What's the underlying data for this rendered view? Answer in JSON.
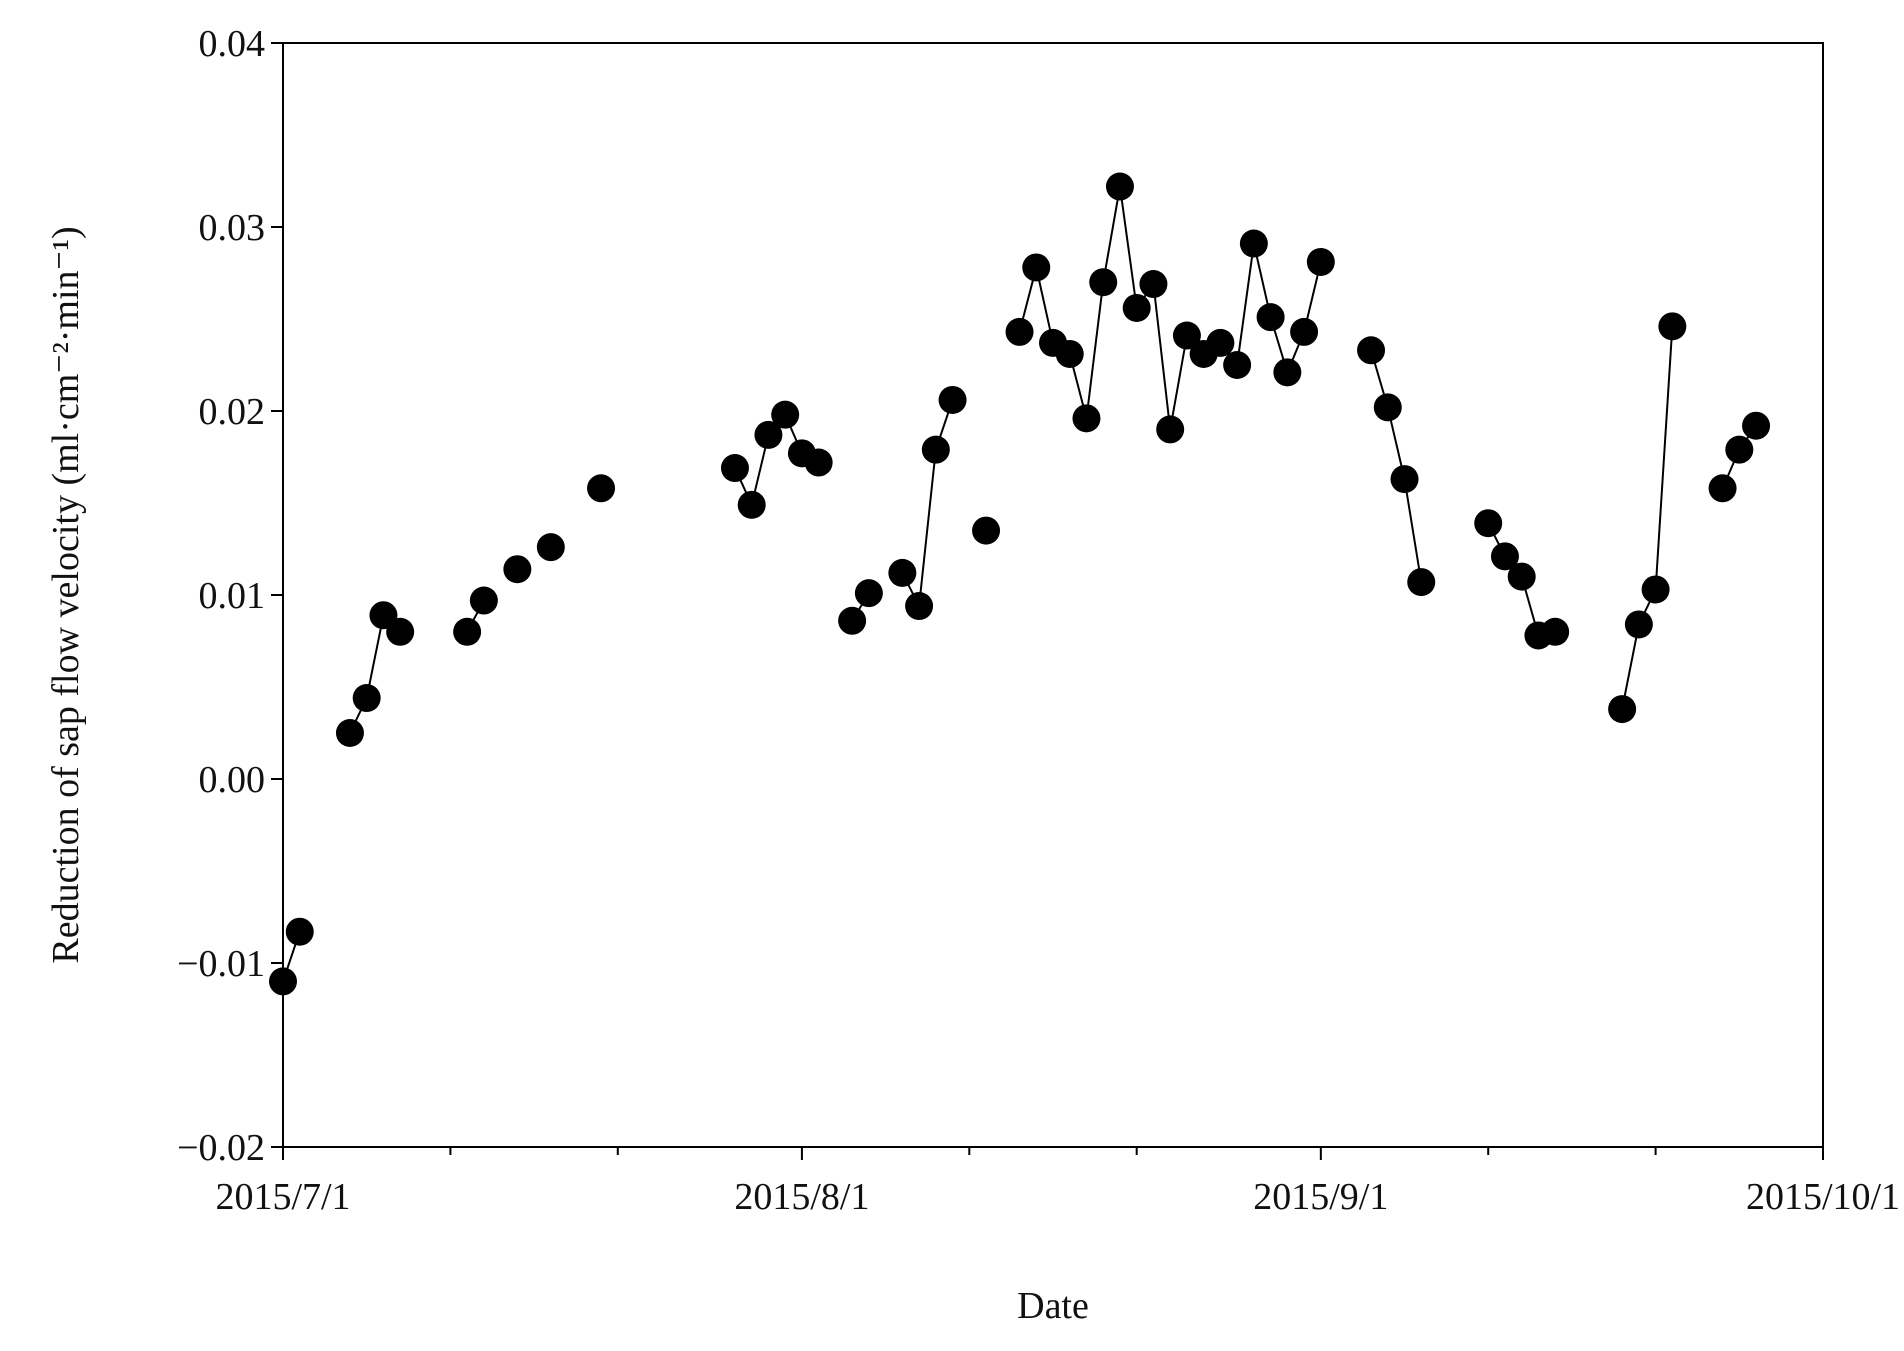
{
  "chart_data": {
    "type": "line",
    "y_label": "Reduction of  sap flow velocity (ml·cm⁻²·min⁻¹)",
    "x_label": "Date",
    "color": "#000000",
    "markers": true,
    "x": [
      "2015-07-01",
      "2015-07-02",
      null,
      "2015-07-05",
      "2015-07-06",
      "2015-07-07",
      "2015-07-08",
      null,
      "2015-07-12",
      "2015-07-13",
      null,
      "2015-07-15",
      null,
      "2015-07-17",
      null,
      "2015-07-20",
      null,
      "2015-07-28",
      "2015-07-29",
      "2015-07-30",
      "2015-07-31",
      "2015-08-01",
      "2015-08-02",
      null,
      "2015-08-04",
      "2015-08-05",
      null,
      "2015-08-07",
      "2015-08-08",
      "2015-08-09",
      "2015-08-10",
      null,
      "2015-08-12",
      null,
      "2015-08-14",
      "2015-08-15",
      "2015-08-16",
      "2015-08-17",
      "2015-08-18",
      "2015-08-19",
      "2015-08-20",
      "2015-08-21",
      "2015-08-22",
      "2015-08-23",
      "2015-08-24",
      "2015-08-25",
      "2015-08-26",
      "2015-08-27",
      "2015-08-28",
      "2015-08-29",
      "2015-08-30",
      "2015-08-31",
      "2015-09-01",
      null,
      "2015-09-04",
      "2015-09-05",
      "2015-09-06",
      "2015-09-07",
      null,
      "2015-09-11",
      "2015-09-12",
      "2015-09-13",
      "2015-09-14",
      "2015-09-15",
      null,
      "2015-09-19",
      "2015-09-20",
      "2015-09-21",
      "2015-09-22",
      null,
      "2015-09-25",
      "2015-09-26",
      "2015-09-27"
    ],
    "values": [
      -0.011,
      -0.0083,
      null,
      0.0025,
      0.0044,
      0.0089,
      0.008,
      null,
      0.008,
      0.0097,
      null,
      0.0114,
      null,
      0.0126,
      null,
      0.0158,
      null,
      0.0169,
      0.0149,
      0.0187,
      0.0198,
      0.0177,
      0.0172,
      null,
      0.0086,
      0.0101,
      null,
      0.0112,
      0.0094,
      0.0179,
      0.0206,
      null,
      0.0135,
      null,
      0.0243,
      0.0278,
      0.0237,
      0.0231,
      0.0196,
      0.027,
      0.0322,
      0.0256,
      0.0269,
      0.019,
      0.0241,
      0.0231,
      0.0237,
      0.0225,
      0.0291,
      0.0251,
      0.0221,
      0.0243,
      0.0281,
      null,
      0.0233,
      0.0202,
      0.0163,
      0.0107,
      null,
      0.0139,
      0.0121,
      0.011,
      0.0078,
      0.008,
      null,
      0.0038,
      0.0084,
      0.0103,
      0.0246,
      null,
      0.0158,
      0.0179,
      0.0192
    ],
    "xlim": [
      "2015-07-01",
      "2015-10-01"
    ],
    "xticks": [
      {
        "value": "2015-07-01",
        "label": "2015/7/1"
      },
      {
        "value": "2015-08-01",
        "label": "2015/8/1"
      },
      {
        "value": "2015-09-01",
        "label": "2015/9/1"
      },
      {
        "value": "2015-10-01",
        "label": "2015/10/1"
      }
    ],
    "xminorticks": [
      "2015-07-11",
      "2015-07-21",
      "2015-08-11",
      "2015-08-21",
      "2015-09-11",
      "2015-09-21"
    ],
    "ylim": [
      -0.02,
      0.04
    ],
    "yticks": [
      {
        "value": -0.02,
        "label": "−0.02"
      },
      {
        "value": -0.01,
        "label": "−0.01"
      },
      {
        "value": 0,
        "label": "0.00"
      },
      0.01,
      0.02,
      0.03,
      0.04
    ]
  }
}
